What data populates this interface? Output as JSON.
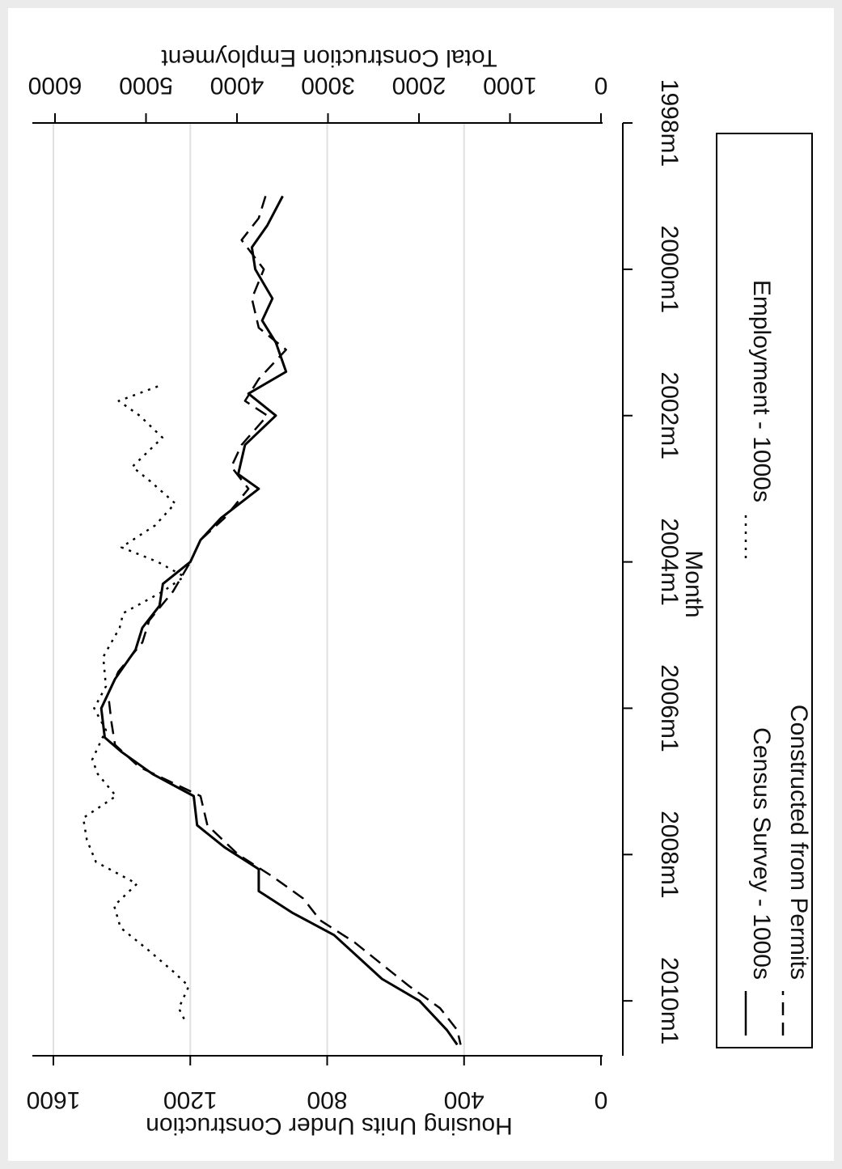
{
  "chart_data": {
    "type": "line",
    "xlabel": "Month",
    "ylabel_left": "Housing Units Under Construction",
    "ylabel_right": "Total Construction Employment",
    "x_range": [
      1998.0,
      2010.75
    ],
    "y_left_range": [
      0,
      1600
    ],
    "y_right_range": [
      0,
      6000
    ],
    "x_ticks": [
      "1998m1",
      "2000m1",
      "2002m1",
      "2004m1",
      "2006m1",
      "2008m1",
      "2010m1"
    ],
    "y_left_ticks": [
      "0",
      "400",
      "800",
      "1200",
      "1600"
    ],
    "y_right_ticks": [
      "0",
      "1000",
      "2000",
      "3000",
      "4000",
      "5000",
      "6000"
    ],
    "grid": true,
    "legend_position": "bottom",
    "orientation": "rotated 90° clockwise",
    "series": [
      {
        "name": "Census Survey - 1000s",
        "axis": "left",
        "style": "solid",
        "points": [
          [
            1999.0,
            930
          ],
          [
            1999.4,
            975
          ],
          [
            1999.7,
            1020
          ],
          [
            2000.0,
            1010
          ],
          [
            2000.4,
            960
          ],
          [
            2000.7,
            990
          ],
          [
            2001.0,
            950
          ],
          [
            2001.4,
            920
          ],
          [
            2001.7,
            1030
          ],
          [
            2002.0,
            950
          ],
          [
            2002.4,
            1040
          ],
          [
            2002.8,
            1060
          ],
          [
            2003.0,
            1000
          ],
          [
            2003.4,
            1110
          ],
          [
            2003.7,
            1170
          ],
          [
            2004.0,
            1200
          ],
          [
            2004.3,
            1280
          ],
          [
            2004.6,
            1290
          ],
          [
            2004.9,
            1340
          ],
          [
            2005.2,
            1360
          ],
          [
            2005.6,
            1420
          ],
          [
            2006.0,
            1460
          ],
          [
            2006.4,
            1450
          ],
          [
            2006.6,
            1400
          ],
          [
            2006.9,
            1310
          ],
          [
            2007.2,
            1190
          ],
          [
            2007.6,
            1180
          ],
          [
            2007.9,
            1100
          ],
          [
            2008.2,
            1000
          ],
          [
            2008.5,
            1000
          ],
          [
            2008.8,
            900
          ],
          [
            2009.1,
            780
          ],
          [
            2009.4,
            710
          ],
          [
            2009.7,
            640
          ],
          [
            2010.0,
            530
          ],
          [
            2010.4,
            450
          ],
          [
            2010.6,
            420
          ]
        ]
      },
      {
        "name": "Constructed from Permits",
        "axis": "left",
        "style": "dashed",
        "points": [
          [
            1999.0,
            980
          ],
          [
            1999.3,
            1000
          ],
          [
            1999.6,
            1050
          ],
          [
            2000.0,
            985
          ],
          [
            2000.4,
            1020
          ],
          [
            2000.8,
            1000
          ],
          [
            2001.1,
            920
          ],
          [
            2001.5,
            1000
          ],
          [
            2001.8,
            1040
          ],
          [
            2002.0,
            975
          ],
          [
            2002.4,
            1050
          ],
          [
            2002.7,
            1080
          ],
          [
            2003.0,
            1030
          ],
          [
            2003.4,
            1100
          ],
          [
            2003.7,
            1170
          ],
          [
            2004.0,
            1200
          ],
          [
            2004.4,
            1250
          ],
          [
            2004.8,
            1320
          ],
          [
            2005.1,
            1340
          ],
          [
            2005.5,
            1410
          ],
          [
            2005.8,
            1440
          ],
          [
            2006.2,
            1430
          ],
          [
            2006.5,
            1420
          ],
          [
            2006.8,
            1350
          ],
          [
            2007.2,
            1170
          ],
          [
            2007.6,
            1150
          ],
          [
            2008.0,
            1060
          ],
          [
            2008.3,
            960
          ],
          [
            2008.6,
            870
          ],
          [
            2008.9,
            820
          ],
          [
            2009.2,
            720
          ],
          [
            2009.5,
            640
          ],
          [
            2009.8,
            560
          ],
          [
            2010.1,
            470
          ],
          [
            2010.4,
            420
          ],
          [
            2010.6,
            410
          ]
        ]
      },
      {
        "name": "Employment - 1000s",
        "axis": "right",
        "style": "dotted",
        "points": [
          [
            2001.6,
            4870
          ],
          [
            2001.8,
            5300
          ],
          [
            2002.0,
            5070
          ],
          [
            2002.3,
            4820
          ],
          [
            2002.7,
            5150
          ],
          [
            2002.9,
            4950
          ],
          [
            2003.2,
            4680
          ],
          [
            2003.5,
            4900
          ],
          [
            2003.8,
            5270
          ],
          [
            2004.0,
            4870
          ],
          [
            2004.2,
            4580
          ],
          [
            2004.4,
            4810
          ],
          [
            2004.7,
            5250
          ],
          [
            2004.9,
            5290
          ],
          [
            2005.3,
            5470
          ],
          [
            2005.7,
            5440
          ],
          [
            2006.0,
            5570
          ],
          [
            2006.3,
            5440
          ],
          [
            2006.7,
            5590
          ],
          [
            2006.9,
            5530
          ],
          [
            2007.2,
            5330
          ],
          [
            2007.5,
            5690
          ],
          [
            2007.8,
            5650
          ],
          [
            2008.1,
            5550
          ],
          [
            2008.4,
            5100
          ],
          [
            2008.7,
            5350
          ],
          [
            2009.0,
            5280
          ],
          [
            2009.3,
            4980
          ],
          [
            2009.6,
            4700
          ],
          [
            2009.8,
            4530
          ],
          [
            2010.1,
            4640
          ],
          [
            2010.3,
            4560
          ]
        ]
      }
    ]
  }
}
